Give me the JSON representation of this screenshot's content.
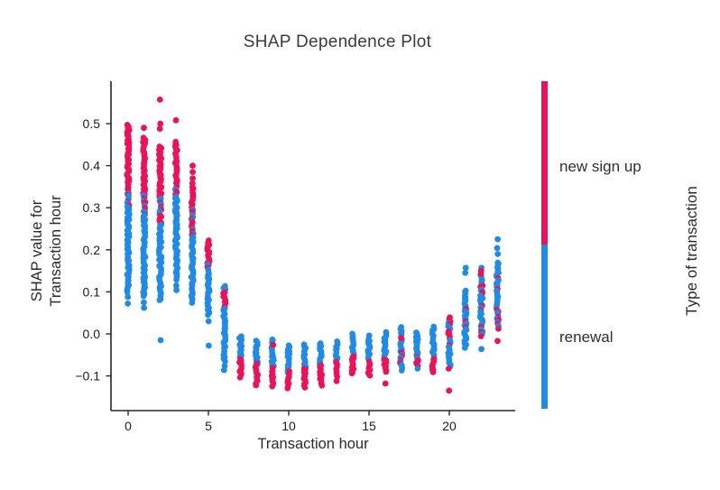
{
  "figure": {
    "title": "SHAP Dependence Plot",
    "x_axis": {
      "label": "Transaction hour",
      "ticks": [
        {
          "v": 0,
          "label": "0"
        },
        {
          "v": 5,
          "label": "5"
        },
        {
          "v": 10,
          "label": "10"
        },
        {
          "v": 15,
          "label": "15"
        },
        {
          "v": 20,
          "label": "20"
        }
      ]
    },
    "y_axis": {
      "label_line1": "SHAP value for",
      "label_line2": "Transaction hour",
      "ticks": [
        {
          "v": 0.5,
          "label": "0.5"
        },
        {
          "v": 0.4,
          "label": "0.4"
        },
        {
          "v": 0.3,
          "label": "0.3"
        },
        {
          "v": 0.2,
          "label": "0.2"
        },
        {
          "v": 0.1,
          "label": "0.1"
        },
        {
          "v": 0.0,
          "label": "0.0"
        },
        {
          "v": -0.1,
          "label": "−0.1"
        }
      ]
    },
    "legend": {
      "title": "Type of transaction",
      "items": [
        {
          "label": "new sign up",
          "color": "#EE1158"
        },
        {
          "label": "renewal",
          "color": "#1E8BE8"
        }
      ]
    }
  },
  "chart_data": {
    "type": "scatter",
    "title": "SHAP Dependence Plot",
    "xlabel": "Transaction hour",
    "ylabel": "SHAP value for Transaction hour",
    "xlim": [
      -1,
      24
    ],
    "ylim": [
      -0.18,
      0.6
    ],
    "legend_position": "right-colorbar",
    "grid": false,
    "series_colors": {
      "new sign up": "#EE1158",
      "renewal": "#1E8BE8"
    },
    "x_hours": [
      0,
      1,
      2,
      3,
      4,
      5,
      6,
      7,
      8,
      9,
      10,
      11,
      12,
      13,
      14,
      15,
      16,
      17,
      18,
      19,
      20,
      21,
      22,
      23
    ],
    "strips": [
      {
        "hour": 0,
        "segments": [
          [
            "red",
            0.497,
            0.335
          ],
          [
            "mix",
            0.335,
            0.298
          ],
          [
            "blue",
            0.298,
            0.1
          ]
        ],
        "dots": [
          [
            "blue",
            0.088
          ],
          [
            "blue",
            0.072
          ]
        ]
      },
      {
        "hour": 1,
        "segments": [
          [
            "red",
            0.465,
            0.33
          ],
          [
            "mix",
            0.33,
            0.28
          ],
          [
            "blue",
            0.28,
            0.09
          ]
        ],
        "dots": [
          [
            "red",
            0.49
          ],
          [
            "blue",
            0.075
          ],
          [
            "blue",
            0.062
          ]
        ]
      },
      {
        "hour": 2,
        "segments": [
          [
            "red",
            0.445,
            0.325
          ],
          [
            "mix",
            0.325,
            0.26
          ],
          [
            "blue",
            0.26,
            0.08
          ]
        ],
        "dots": [
          [
            "red",
            0.557
          ],
          [
            "red",
            0.5
          ],
          [
            "red",
            0.488
          ],
          [
            "blue",
            -0.015
          ]
        ]
      },
      {
        "hour": 3,
        "segments": [
          [
            "red",
            0.457,
            0.343
          ],
          [
            "mix",
            0.343,
            0.318
          ],
          [
            "blue",
            0.318,
            0.13
          ]
        ],
        "dots": [
          [
            "red",
            0.508
          ],
          [
            "blue",
            0.115
          ],
          [
            "blue",
            0.104
          ]
        ]
      },
      {
        "hour": 4,
        "segments": [
          [
            "red",
            0.35,
            0.295
          ],
          [
            "mix",
            0.295,
            0.23
          ],
          [
            "blue",
            0.23,
            0.075
          ]
        ],
        "dots": [
          [
            "red",
            0.4
          ],
          [
            "red",
            0.385
          ],
          [
            "red",
            0.37
          ],
          [
            "red",
            0.358
          ]
        ]
      },
      {
        "hour": 5,
        "segments": [
          [
            "red",
            0.221,
            0.165
          ],
          [
            "mix",
            0.165,
            0.135
          ],
          [
            "blue",
            0.135,
            0.045
          ]
        ],
        "dots": [
          [
            "blue",
            0.03
          ],
          [
            "blue",
            -0.028
          ]
        ]
      },
      {
        "hour": 6,
        "segments": [
          [
            "blue",
            0.114,
            0.1
          ],
          [
            "red",
            0.1,
            0.06
          ],
          [
            "blue",
            0.06,
            -0.064
          ]
        ],
        "dots": [
          [
            "blue",
            -0.076
          ],
          [
            "blue",
            -0.086
          ]
        ]
      },
      {
        "hour": 7,
        "segments": [
          [
            "blue",
            -0.005,
            -0.06
          ],
          [
            "red",
            -0.06,
            -0.103
          ]
        ],
        "dots": []
      },
      {
        "hour": 8,
        "segments": [
          [
            "blue",
            -0.017,
            -0.071
          ],
          [
            "red",
            -0.071,
            -0.122
          ]
        ],
        "dots": []
      },
      {
        "hour": 9,
        "segments": [
          [
            "blue",
            -0.012,
            -0.082
          ],
          [
            "red",
            -0.082,
            -0.125
          ]
        ],
        "dots": [
          [
            "red",
            -0.026
          ]
        ]
      },
      {
        "hour": 10,
        "segments": [
          [
            "blue",
            -0.028,
            -0.09
          ],
          [
            "red",
            -0.09,
            -0.128
          ]
        ],
        "dots": []
      },
      {
        "hour": 11,
        "segments": [
          [
            "blue",
            -0.026,
            -0.082
          ],
          [
            "red",
            -0.082,
            -0.128
          ]
        ],
        "dots": []
      },
      {
        "hour": 12,
        "segments": [
          [
            "blue",
            -0.022,
            -0.075
          ],
          [
            "red",
            -0.075,
            -0.124
          ]
        ],
        "dots": []
      },
      {
        "hour": 13,
        "segments": [
          [
            "blue",
            -0.017,
            -0.065
          ],
          [
            "red",
            -0.065,
            -0.1
          ]
        ],
        "dots": [
          [
            "red",
            -0.112
          ]
        ]
      },
      {
        "hour": 14,
        "segments": [
          [
            "blue",
            0.0,
            -0.054
          ],
          [
            "red",
            -0.054,
            -0.095
          ]
        ],
        "dots": []
      },
      {
        "hour": 15,
        "segments": [
          [
            "blue",
            -0.012,
            -0.065
          ],
          [
            "red",
            -0.065,
            -0.1
          ]
        ],
        "dots": [
          [
            "blue",
            -0.004
          ]
        ]
      },
      {
        "hour": 16,
        "segments": [
          [
            "blue",
            0.004,
            -0.06
          ],
          [
            "red",
            -0.06,
            -0.09
          ]
        ],
        "dots": [
          [
            "red",
            -0.118
          ]
        ]
      },
      {
        "hour": 17,
        "segments": [
          [
            "blue",
            0.015,
            -0.045
          ],
          [
            "mix",
            -0.045,
            -0.086
          ]
        ],
        "dots": [
          [
            "red",
            -0.01
          ]
        ]
      },
      {
        "hour": 18,
        "segments": [
          [
            "blue",
            0.004,
            -0.055
          ],
          [
            "mix",
            -0.055,
            -0.082
          ]
        ],
        "dots": []
      },
      {
        "hour": 19,
        "segments": [
          [
            "blue",
            0.017,
            -0.06
          ],
          [
            "red",
            -0.06,
            -0.092
          ]
        ],
        "dots": []
      },
      {
        "hour": 20,
        "segments": [
          [
            "mix",
            0.035,
            -0.082
          ]
        ],
        "dots": [
          [
            "red",
            0.039
          ],
          [
            "red",
            -0.135
          ]
        ]
      },
      {
        "hour": 21,
        "segments": [
          [
            "mixlite",
            0.104,
            -0.025
          ]
        ],
        "dots": [
          [
            "blue",
            0.157
          ],
          [
            "blue",
            0.145
          ],
          [
            "blue",
            -0.033
          ]
        ]
      },
      {
        "hour": 22,
        "segments": [
          [
            "mixlite",
            0.14,
            -0.005
          ]
        ],
        "dots": [
          [
            "blue",
            0.157
          ],
          [
            "red",
            0.15
          ],
          [
            "red",
            0.143
          ],
          [
            "blue",
            -0.036
          ]
        ]
      },
      {
        "hour": 23,
        "segments": [
          [
            "mixlite",
            0.17,
            0.012
          ]
        ],
        "dots": [
          [
            "blue",
            0.225
          ],
          [
            "blue",
            0.204
          ],
          [
            "blue",
            0.19
          ],
          [
            "red",
            -0.017
          ]
        ]
      }
    ]
  }
}
